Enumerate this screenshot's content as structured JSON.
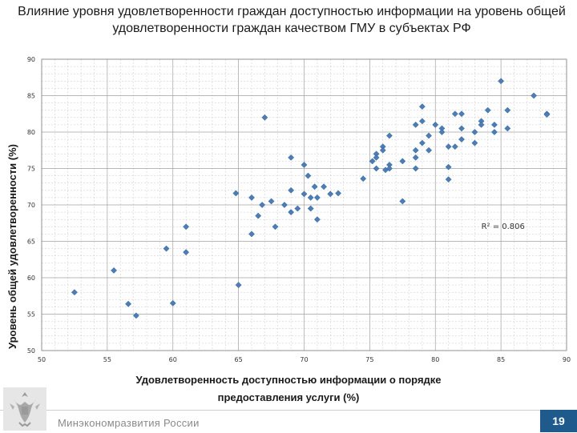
{
  "slide": {
    "page_number": "19",
    "footer_text": "Минэкономразвития России",
    "emblem_icon": "coat-of-arms-icon"
  },
  "chart_data": {
    "type": "scatter",
    "title": "Влияние  уровня удовлетворенности граждан доступностью информации на уровень общей удовлетворенности граждан качеством ГМУ в субъектах РФ",
    "xlabel": "Удовлетворенность доступностью информации о порядке предоставления услуги (%)",
    "ylabel": "Уровень общей удовлетворенности (%)",
    "xlim": [
      50,
      90
    ],
    "ylim": [
      50,
      90
    ],
    "xticks": [
      50,
      55,
      60,
      65,
      70,
      75,
      80,
      85,
      90
    ],
    "yticks": [
      50,
      55,
      60,
      65,
      70,
      75,
      80,
      85,
      90
    ],
    "grid": true,
    "annotation": "R² = 0.806",
    "annotation_pos": [
      83.5,
      66.7
    ],
    "marker_color": "#4a7ebb",
    "points": [
      [
        52.5,
        58
      ],
      [
        55.5,
        61
      ],
      [
        56.6,
        56.4
      ],
      [
        57.2,
        54.8
      ],
      [
        59.5,
        64
      ],
      [
        60,
        56.5
      ],
      [
        61,
        67
      ],
      [
        61,
        63.5
      ],
      [
        64.8,
        71.6
      ],
      [
        65,
        59
      ],
      [
        66,
        71
      ],
      [
        66,
        66
      ],
      [
        66.5,
        68.5
      ],
      [
        66.8,
        70
      ],
      [
        67,
        82
      ],
      [
        67.5,
        70.5
      ],
      [
        67.8,
        67
      ],
      [
        68.5,
        70
      ],
      [
        69,
        69
      ],
      [
        69,
        72
      ],
      [
        69,
        76.5
      ],
      [
        69.5,
        69.5
      ],
      [
        70,
        71.5
      ],
      [
        70,
        75.5
      ],
      [
        70.3,
        74
      ],
      [
        70.5,
        71
      ],
      [
        70.5,
        69.5
      ],
      [
        70.8,
        72.5
      ],
      [
        71,
        71
      ],
      [
        71,
        68
      ],
      [
        71.5,
        72.5
      ],
      [
        72,
        71.5
      ],
      [
        72.6,
        71.6
      ],
      [
        74.5,
        73.6
      ],
      [
        75.2,
        76
      ],
      [
        75.5,
        77
      ],
      [
        75.5,
        76.5
      ],
      [
        75.5,
        75
      ],
      [
        76,
        78
      ],
      [
        76,
        77.5
      ],
      [
        76.2,
        74.8
      ],
      [
        76.5,
        79.5
      ],
      [
        76.5,
        75.5
      ],
      [
        76.5,
        75
      ],
      [
        77.5,
        70.5
      ],
      [
        77.5,
        76
      ],
      [
        78.5,
        81
      ],
      [
        78.5,
        77.5
      ],
      [
        78.5,
        76.5
      ],
      [
        78.5,
        75
      ],
      [
        79,
        83.5
      ],
      [
        79,
        81.5
      ],
      [
        79,
        78.5
      ],
      [
        79.5,
        79.5
      ],
      [
        79.5,
        77.5
      ],
      [
        80,
        81
      ],
      [
        80.5,
        80.5
      ],
      [
        80.5,
        80
      ],
      [
        81,
        78
      ],
      [
        81,
        75.2
      ],
      [
        81,
        73.5
      ],
      [
        81.5,
        82.5
      ],
      [
        81.5,
        78
      ],
      [
        82,
        82.5
      ],
      [
        82,
        80.5
      ],
      [
        82,
        79
      ],
      [
        83,
        80
      ],
      [
        83,
        78.5
      ],
      [
        83.5,
        81.5
      ],
      [
        83.5,
        81
      ],
      [
        84,
        83
      ],
      [
        84.5,
        81
      ],
      [
        84.5,
        80
      ],
      [
        85,
        87
      ],
      [
        85.5,
        83
      ],
      [
        85.5,
        80.5
      ],
      [
        87.5,
        85
      ],
      [
        88.5,
        82.5
      ],
      [
        88.5,
        82.4
      ]
    ]
  }
}
